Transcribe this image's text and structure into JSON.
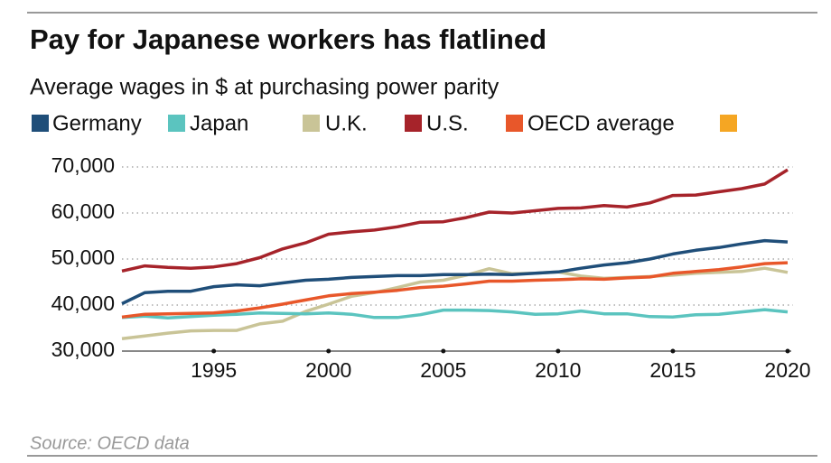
{
  "chart_data": {
    "type": "line",
    "title": "Pay for Japanese workers has flatlined",
    "subtitle": "Average wages in $ at purchasing power parity",
    "source": "Source: OECD data",
    "x": [
      1991,
      1992,
      1993,
      1994,
      1995,
      1996,
      1997,
      1998,
      1999,
      2000,
      2001,
      2002,
      2003,
      2004,
      2005,
      2006,
      2007,
      2008,
      2009,
      2010,
      2011,
      2012,
      2013,
      2014,
      2015,
      2016,
      2017,
      2018,
      2019,
      2020
    ],
    "series": [
      {
        "name": "Germany",
        "color": "#1f4e79",
        "values": [
          40300,
          42700,
          43000,
          43000,
          44000,
          44400,
          44200,
          44800,
          45400,
          45600,
          46000,
          46200,
          46400,
          46400,
          46600,
          46600,
          46700,
          46600,
          46900,
          47200,
          48000,
          48700,
          49200,
          50000,
          51100,
          51900,
          52500,
          53300,
          54000,
          53700
        ]
      },
      {
        "name": "Japan",
        "color": "#5bc4bf",
        "values": [
          37300,
          37600,
          37200,
          37500,
          37800,
          38000,
          38300,
          38200,
          38100,
          38300,
          38000,
          37300,
          37300,
          37900,
          38900,
          38900,
          38800,
          38500,
          38000,
          38100,
          38700,
          38100,
          38100,
          37500,
          37400,
          37900,
          38000,
          38500,
          39000,
          38500
        ]
      },
      {
        "name": "U.K.",
        "color": "#c9c497",
        "values": [
          32700,
          33300,
          33900,
          34400,
          34500,
          34500,
          35900,
          36500,
          38600,
          40200,
          41900,
          42700,
          43800,
          45000,
          45400,
          46500,
          47900,
          46800,
          46900,
          47200,
          46300,
          45800,
          46000,
          46200,
          46500,
          46900,
          47100,
          47300,
          48000,
          47100
        ]
      },
      {
        "name": "U.S.",
        "color": "#a6232a",
        "values": [
          47400,
          48500,
          48200,
          48000,
          48300,
          49000,
          50300,
          52200,
          53500,
          55400,
          55900,
          56300,
          57000,
          58000,
          58100,
          59000,
          60200,
          60000,
          60500,
          61000,
          61100,
          61600,
          61300,
          62200,
          63800,
          63900,
          64600,
          65300,
          66300,
          69400
        ]
      },
      {
        "name": "OECD average",
        "color": "#e8572a",
        "values": [
          37400,
          38000,
          38100,
          38200,
          38300,
          38700,
          39400,
          40200,
          41100,
          42000,
          42500,
          42800,
          43200,
          43800,
          44100,
          44600,
          45200,
          45200,
          45400,
          45500,
          45700,
          45600,
          45900,
          46100,
          46900,
          47300,
          47700,
          48300,
          49000,
          49200
        ]
      }
    ],
    "xlim": [
      1991,
      2020
    ],
    "xticks": [
      1995,
      2000,
      2005,
      2010,
      2015,
      2020
    ],
    "ylim": [
      30000,
      70000
    ],
    "yticks": [
      {
        "value": 30000,
        "label": "30,000"
      },
      {
        "value": 40000,
        "label": "40,000"
      },
      {
        "value": 50000,
        "label": "50,000"
      },
      {
        "value": 60000,
        "label": "60,000"
      },
      {
        "value": 70000,
        "label": "70,000"
      }
    ],
    "grid": true
  }
}
